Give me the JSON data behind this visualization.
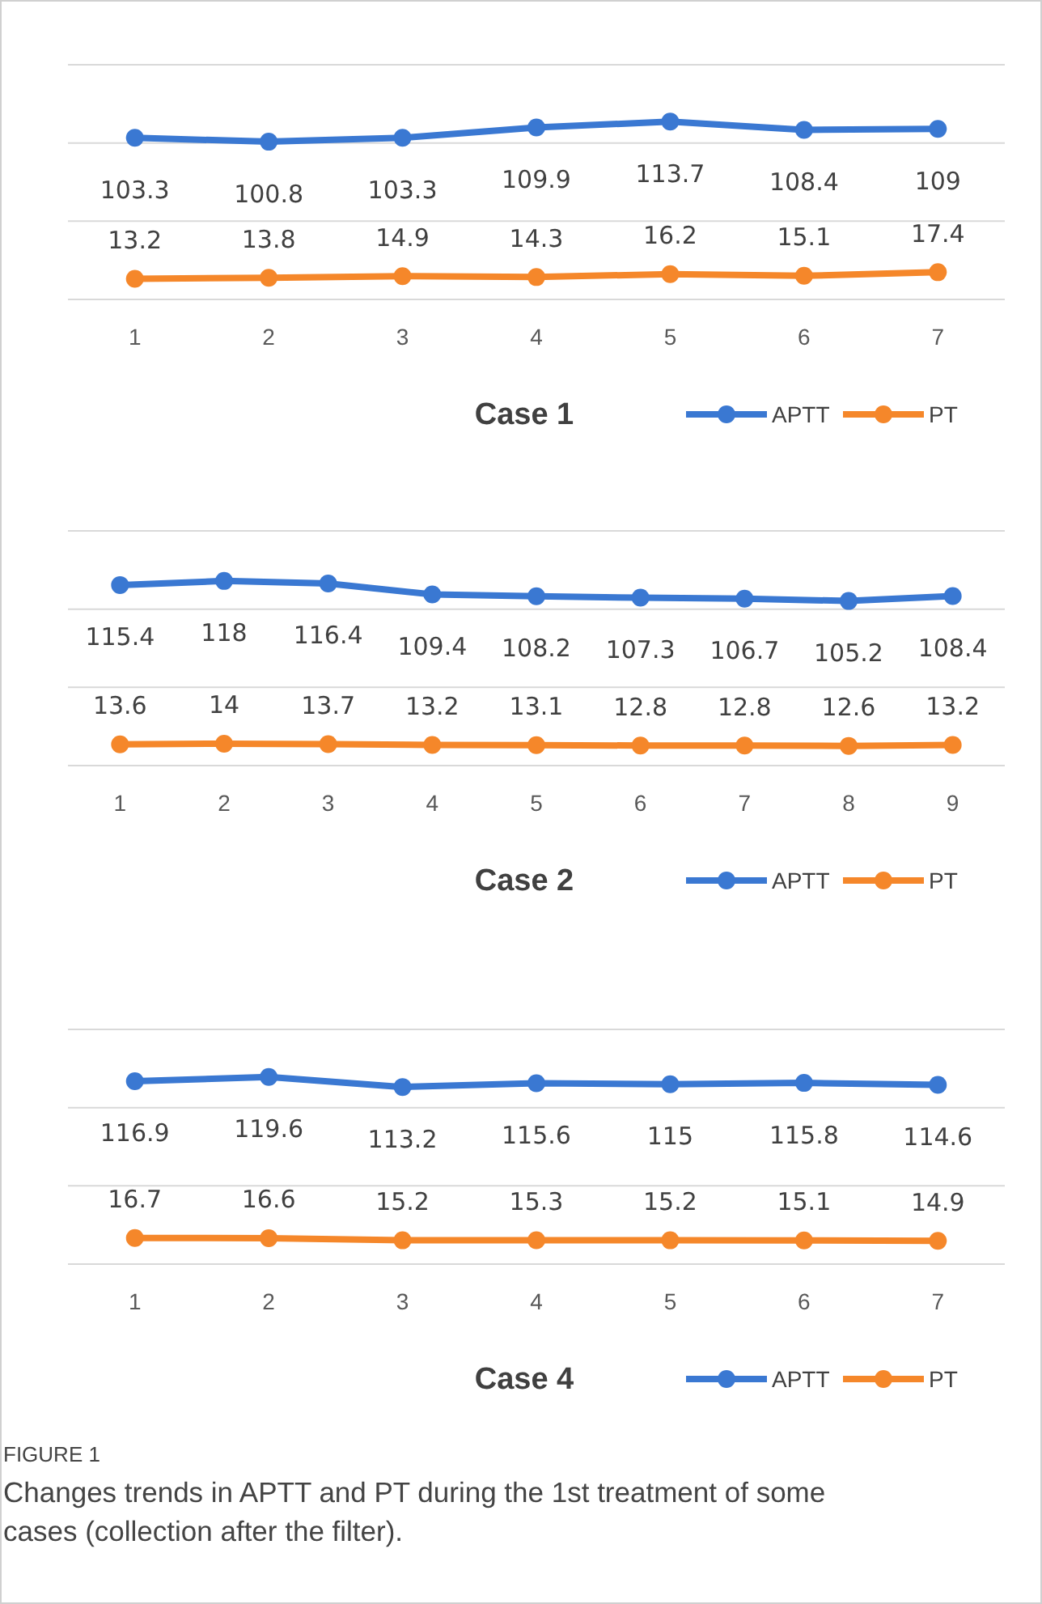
{
  "chart_data": [
    {
      "type": "line",
      "title": "Case 1",
      "categories": [
        "1",
        "2",
        "3",
        "4",
        "5",
        "6",
        "7"
      ],
      "series": [
        {
          "name": "APTT",
          "color": "#3a78d2",
          "values": [
            103.3,
            100.8,
            103.3,
            109.9,
            113.7,
            108.4,
            109
          ]
        },
        {
          "name": "PT",
          "color": "#f5872a",
          "values": [
            13.2,
            13.8,
            14.9,
            14.3,
            16.2,
            15.1,
            17.4
          ]
        }
      ],
      "ylim": [
        0,
        150
      ],
      "yticks": [
        {
          "value": 0,
          "label": null
        },
        {
          "value": 50,
          "label": null
        },
        {
          "value": 100,
          "label": null
        },
        {
          "value": 150,
          "label": null
        }
      ],
      "tick_labels": "x",
      "grid": "y",
      "data_labels": true,
      "marker": "circle",
      "legend": "bottom right"
    },
    {
      "type": "line",
      "title": "Case 2",
      "categories": [
        "1",
        "2",
        "3",
        "4",
        "5",
        "6",
        "7",
        "8",
        "9"
      ],
      "series": [
        {
          "name": "APTT",
          "color": "#3a78d2",
          "values": [
            115.4,
            118,
            116.4,
            109.4,
            108.2,
            107.3,
            106.7,
            105.2,
            108.4
          ]
        },
        {
          "name": "PT",
          "color": "#f5872a",
          "values": [
            13.6,
            14,
            13.7,
            13.2,
            13.1,
            12.8,
            12.8,
            12.6,
            13.2
          ]
        }
      ],
      "ylim": [
        0,
        150
      ],
      "yticks": [
        {
          "value": 0,
          "label": null
        },
        {
          "value": 50,
          "label": null
        },
        {
          "value": 100,
          "label": null
        },
        {
          "value": 150,
          "label": null
        }
      ],
      "tick_labels": "x",
      "grid": "y",
      "data_labels": true,
      "marker": "circle",
      "legend": "bottom right"
    },
    {
      "type": "line",
      "title": "Case 4",
      "categories": [
        "1",
        "2",
        "3",
        "4",
        "5",
        "6",
        "7"
      ],
      "series": [
        {
          "name": "APTT",
          "color": "#3a78d2",
          "values": [
            116.9,
            119.6,
            113.2,
            115.6,
            115,
            115.8,
            114.6
          ]
        },
        {
          "name": "PT",
          "color": "#f5872a",
          "values": [
            16.7,
            16.6,
            15.2,
            15.3,
            15.2,
            15.1,
            14.9
          ]
        }
      ],
      "ylim": [
        0,
        150
      ],
      "yticks": [
        {
          "value": 0,
          "label": null
        },
        {
          "value": 50,
          "label": null
        },
        {
          "value": 100,
          "label": null
        },
        {
          "value": 150,
          "label": null
        }
      ],
      "tick_labels": "x",
      "grid": "y",
      "data_labels": true,
      "marker": "circle",
      "legend": "bottom right",
      "annotations": [
        "FIGURE 1",
        "Changes trends in APTT and PT during the 1st treatment of some cases (collection after the filter)."
      ]
    }
  ]
}
